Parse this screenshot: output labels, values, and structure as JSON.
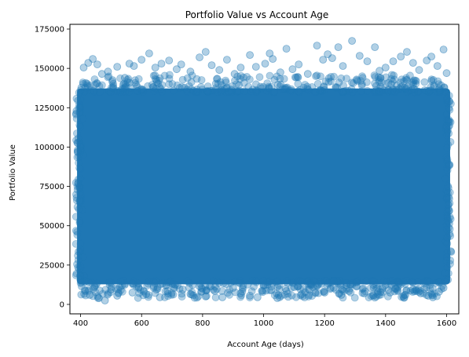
{
  "chart_data": {
    "type": "scatter",
    "title": "Portfolio Value vs Account Age",
    "xlabel": "Account Age (days)",
    "ylabel": "Portfolio Value",
    "xlim": [
      365,
      1640
    ],
    "ylim": [
      -6000,
      178000
    ],
    "xticks": [
      400,
      600,
      800,
      1000,
      1200,
      1400,
      1600
    ],
    "yticks": [
      0,
      25000,
      50000,
      75000,
      100000,
      125000,
      150000,
      175000
    ],
    "grid": false,
    "legend": "none",
    "marker_color": "#1f77b4",
    "marker_alpha": 0.35,
    "dense_region": {
      "x": [
        400,
        1600
      ],
      "y": [
        15000,
        135000
      ]
    },
    "series": [
      {
        "points": [
          [
            410,
            150500
          ],
          [
            425,
            153500
          ],
          [
            440,
            156000
          ],
          [
            455,
            152500
          ],
          [
            470,
            146500
          ],
          [
            490,
            148000
          ],
          [
            505,
            142500
          ],
          [
            520,
            151000
          ],
          [
            545,
            144000
          ],
          [
            560,
            153000
          ],
          [
            575,
            151500
          ],
          [
            600,
            155500
          ],
          [
            625,
            159500
          ],
          [
            645,
            150500
          ],
          [
            665,
            153000
          ],
          [
            690,
            155000
          ],
          [
            715,
            149500
          ],
          [
            730,
            152500
          ],
          [
            760,
            148000
          ],
          [
            790,
            157000
          ],
          [
            810,
            160500
          ],
          [
            830,
            152000
          ],
          [
            855,
            149000
          ],
          [
            880,
            155500
          ],
          [
            905,
            146500
          ],
          [
            925,
            150500
          ],
          [
            955,
            158500
          ],
          [
            975,
            151000
          ],
          [
            1005,
            153000
          ],
          [
            1020,
            159500
          ],
          [
            1030,
            156000
          ],
          [
            1055,
            147500
          ],
          [
            1075,
            162500
          ],
          [
            1095,
            149500
          ],
          [
            1115,
            152500
          ],
          [
            1145,
            146500
          ],
          [
            1175,
            164500
          ],
          [
            1195,
            155500
          ],
          [
            1210,
            159000
          ],
          [
            1225,
            156500
          ],
          [
            1245,
            163500
          ],
          [
            1260,
            151500
          ],
          [
            1290,
            167500
          ],
          [
            1315,
            158000
          ],
          [
            1340,
            154500
          ],
          [
            1365,
            163500
          ],
          [
            1380,
            148500
          ],
          [
            1400,
            150500
          ],
          [
            1425,
            154500
          ],
          [
            1450,
            157500
          ],
          [
            1470,
            160500
          ],
          [
            1490,
            153500
          ],
          [
            1510,
            149000
          ],
          [
            1535,
            155000
          ],
          [
            1550,
            157500
          ],
          [
            1570,
            151500
          ],
          [
            1590,
            162000
          ],
          [
            1600,
            147000
          ],
          [
            415,
            8500
          ],
          [
            430,
            6000
          ],
          [
            445,
            11000
          ],
          [
            460,
            4000
          ],
          [
            480,
            2500
          ],
          [
            500,
            9500
          ],
          [
            520,
            5500
          ],
          [
            545,
            12500
          ],
          [
            570,
            7500
          ],
          [
            590,
            10500
          ],
          [
            615,
            6500
          ],
          [
            640,
            11500
          ],
          [
            660,
            4500
          ],
          [
            685,
            8500
          ],
          [
            710,
            12500
          ],
          [
            735,
            9500
          ],
          [
            760,
            6500
          ],
          [
            790,
            11500
          ],
          [
            810,
            5000
          ],
          [
            840,
            8500
          ],
          [
            865,
            4500
          ],
          [
            900,
            10500
          ],
          [
            925,
            7000
          ],
          [
            955,
            5500
          ],
          [
            980,
            4500
          ],
          [
            1000,
            12000
          ],
          [
            1025,
            9000
          ],
          [
            1045,
            4000
          ],
          [
            1075,
            8500
          ],
          [
            1100,
            11000
          ],
          [
            1125,
            6500
          ],
          [
            1150,
            9500
          ],
          [
            1175,
            12000
          ],
          [
            1200,
            7500
          ],
          [
            1230,
            10500
          ],
          [
            1255,
            6000
          ],
          [
            1280,
            8500
          ],
          [
            1305,
            11500
          ],
          [
            1330,
            7000
          ],
          [
            1360,
            5500
          ],
          [
            1390,
            10000
          ],
          [
            1415,
            7500
          ],
          [
            1440,
            11000
          ],
          [
            1465,
            6000
          ],
          [
            1490,
            9500
          ],
          [
            1515,
            7000
          ],
          [
            1540,
            5500
          ],
          [
            1555,
            4500
          ],
          [
            1575,
            8000
          ],
          [
            1590,
            10500
          ],
          [
            408,
            30000
          ],
          [
            406,
            60000
          ],
          [
            409,
            95000
          ],
          [
            407,
            118000
          ],
          [
            1597,
            40000
          ],
          [
            1596,
            80000
          ],
          [
            1598,
            112000
          ],
          [
            412,
            18000
          ],
          [
            1594,
            20000
          ]
        ]
      }
    ]
  }
}
